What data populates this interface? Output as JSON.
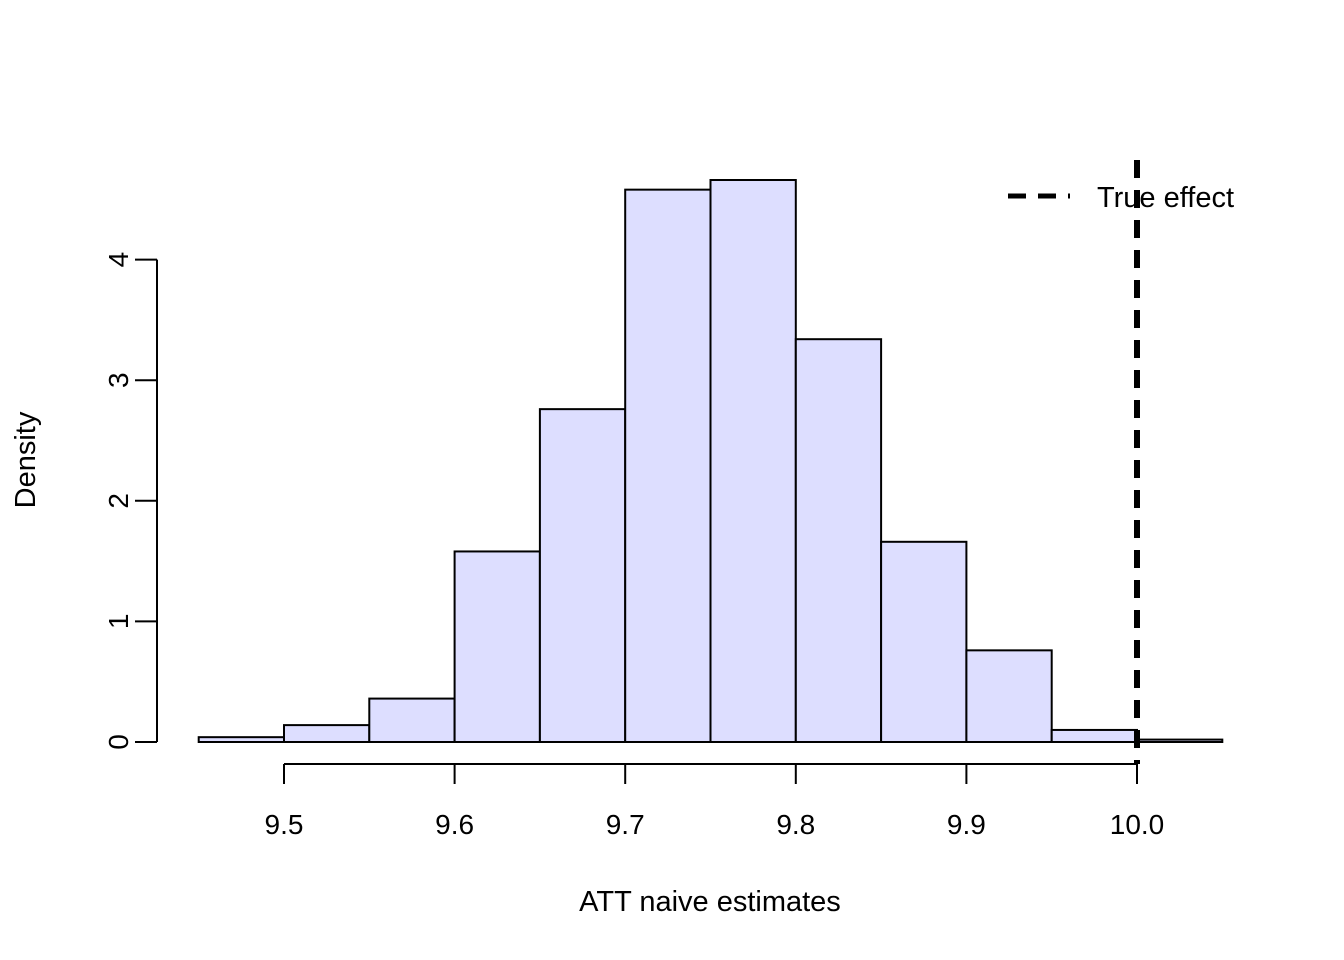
{
  "chart_data": {
    "type": "histogram",
    "title": "",
    "xlabel": "ATT naive estimates",
    "ylabel": "Density",
    "bins": [
      {
        "x0": 9.45,
        "x1": 9.5,
        "density": 0.04
      },
      {
        "x0": 9.5,
        "x1": 9.55,
        "density": 0.14
      },
      {
        "x0": 9.55,
        "x1": 9.6,
        "density": 0.36
      },
      {
        "x0": 9.6,
        "x1": 9.65,
        "density": 1.58
      },
      {
        "x0": 9.65,
        "x1": 9.7,
        "density": 2.76
      },
      {
        "x0": 9.7,
        "x1": 9.75,
        "density": 4.58
      },
      {
        "x0": 9.75,
        "x1": 9.8,
        "density": 4.66
      },
      {
        "x0": 9.8,
        "x1": 9.85,
        "density": 3.34
      },
      {
        "x0": 9.85,
        "x1": 9.9,
        "density": 1.66
      },
      {
        "x0": 9.9,
        "x1": 9.95,
        "density": 0.76
      },
      {
        "x0": 9.95,
        "x1": 10.0,
        "density": 0.1
      },
      {
        "x0": 10.0,
        "x1": 10.05,
        "density": 0.02
      }
    ],
    "x_ticks": [
      9.5,
      9.6,
      9.7,
      9.8,
      9.9,
      10.0
    ],
    "x_tick_labels": [
      "9.5",
      "9.6",
      "9.7",
      "9.8",
      "9.9",
      "10.0"
    ],
    "y_ticks": [
      0,
      1,
      2,
      3,
      4
    ],
    "y_tick_labels": [
      "0",
      "1",
      "2",
      "3",
      "4"
    ],
    "xlim": [
      9.45,
      10.05
    ],
    "ylim": [
      0,
      4.8
    ],
    "bar_fill": "#dddeff",
    "bar_stroke": "#000000",
    "reference_line": {
      "x": 10.0,
      "label": "True effect",
      "style": "dashed",
      "color": "#000000"
    },
    "legend": {
      "position": "top-right",
      "entries": [
        "True effect"
      ]
    },
    "grid": false
  }
}
